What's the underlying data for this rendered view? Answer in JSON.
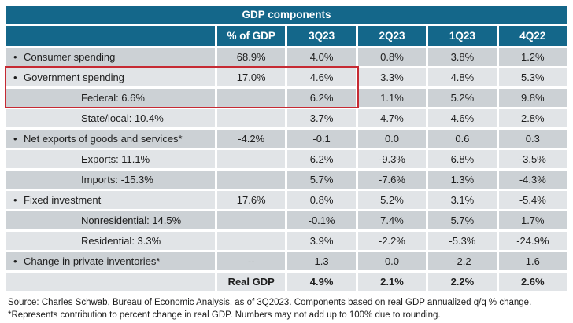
{
  "chart_data": {
    "type": "table",
    "title": "GDP components",
    "columns": [
      "",
      "% of GDP",
      "3Q23",
      "2Q23",
      "1Q23",
      "4Q22"
    ],
    "rows": [
      {
        "label": "Consumer spending",
        "bullet": true,
        "indent": false,
        "pct_of_gdp": "68.9%",
        "values": [
          "4.0%",
          "0.8%",
          "3.8%",
          "1.2%"
        ]
      },
      {
        "label": "Government spending",
        "bullet": true,
        "indent": false,
        "pct_of_gdp": "17.0%",
        "values": [
          "4.6%",
          "3.3%",
          "4.8%",
          "5.3%"
        ]
      },
      {
        "label": "Federal: 6.6%",
        "bullet": false,
        "indent": true,
        "pct_of_gdp": "",
        "values": [
          "6.2%",
          "1.1%",
          "5.2%",
          "9.8%"
        ]
      },
      {
        "label": "State/local: 10.4%",
        "bullet": false,
        "indent": true,
        "pct_of_gdp": "",
        "values": [
          "3.7%",
          "4.7%",
          "4.6%",
          "2.8%"
        ]
      },
      {
        "label": "Net exports of goods and services*",
        "bullet": true,
        "indent": false,
        "pct_of_gdp": "-4.2%",
        "values": [
          "-0.1",
          "0.0",
          "0.6",
          "0.3"
        ]
      },
      {
        "label": "Exports: 11.1%",
        "bullet": false,
        "indent": true,
        "pct_of_gdp": "",
        "values": [
          "6.2%",
          "-9.3%",
          "6.8%",
          "-3.5%"
        ]
      },
      {
        "label": "Imports: -15.3%",
        "bullet": false,
        "indent": true,
        "pct_of_gdp": "",
        "values": [
          "5.7%",
          "-7.6%",
          "1.3%",
          "-4.3%"
        ]
      },
      {
        "label": "Fixed investment",
        "bullet": true,
        "indent": false,
        "pct_of_gdp": "17.6%",
        "values": [
          "0.8%",
          "5.2%",
          "3.1%",
          "-5.4%"
        ]
      },
      {
        "label": "Nonresidential: 14.5%",
        "bullet": false,
        "indent": true,
        "pct_of_gdp": "",
        "values": [
          "-0.1%",
          "7.4%",
          "5.7%",
          "1.7%"
        ]
      },
      {
        "label": "Residential: 3.3%",
        "bullet": false,
        "indent": true,
        "pct_of_gdp": "",
        "values": [
          "3.9%",
          "-2.2%",
          "-5.3%",
          "-24.9%"
        ]
      },
      {
        "label": "Change in private inventories*",
        "bullet": true,
        "indent": false,
        "pct_of_gdp": "--",
        "values": [
          "1.3",
          "0.0",
          "-2.2",
          "1.6"
        ]
      },
      {
        "label": "",
        "bullet": false,
        "indent": false,
        "bold": true,
        "pct_of_gdp": "Real GDP",
        "values": [
          "4.9%",
          "2.1%",
          "2.2%",
          "2.6%"
        ]
      }
    ],
    "highlight": {
      "rows": [
        "Government spending",
        "Federal: 6.6%"
      ],
      "columns": [
        "",
        "% of GDP",
        "3Q23"
      ]
    },
    "footnotes": [
      "Source: Charles Schwab, Bureau of Economic Analysis, as of 3Q2023. Components based on real GDP annualized q/q % change.",
      "*Represents contribution to percent change in real GDP. Numbers may not add up to 100% due to rounding."
    ],
    "legend_position": "none",
    "grid": "white cell spacing, alternating row shading"
  },
  "bullet_glyph": "•",
  "colors": {
    "header_teal": "#14678a",
    "row_dark": "#ccd1d5",
    "row_light": "#e1e4e7",
    "highlight_red": "#c62a33",
    "text": "#1e1e1e",
    "background": "#ffffff"
  }
}
